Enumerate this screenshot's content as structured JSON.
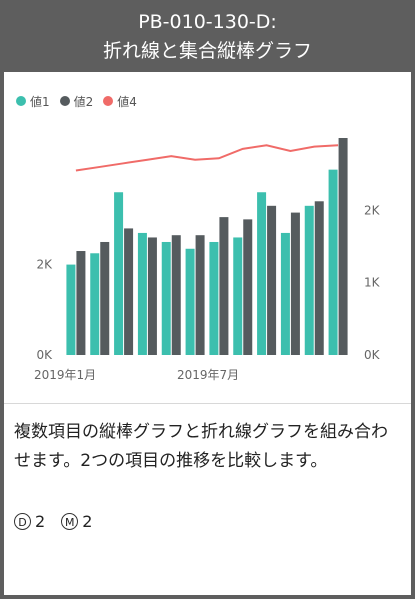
{
  "header": {
    "id": "PB-010-130-D:",
    "title": "折れ線と集合縦棒グラフ"
  },
  "legend": [
    {
      "label": "値1",
      "color": "#3cbfae"
    },
    {
      "label": "値2",
      "color": "#555b5e"
    },
    {
      "label": "値4",
      "color": "#f06b68"
    }
  ],
  "description": {
    "text": "複数項目の縦棒グラフと折れ線グラフを組み合わせます。2つの項目の推移を比較します。",
    "d_label": "D",
    "d_value": "2",
    "m_label": "M",
    "m_value": "2"
  },
  "chart_data": {
    "type": "bar",
    "categories": [
      "2019-01",
      "2019-02",
      "2019-03",
      "2019-04",
      "2019-05",
      "2019-06",
      "2019-07",
      "2019-08",
      "2019-09",
      "2019-10",
      "2019-11",
      "2019-12"
    ],
    "x_tick_labels": [
      {
        "index": 0,
        "label": "2019年1月"
      },
      {
        "index": 6,
        "label": "2019年7月"
      }
    ],
    "series": [
      {
        "name": "値1",
        "axis": "left",
        "type": "bar",
        "values": [
          2000,
          2250,
          3600,
          2700,
          2500,
          2350,
          2500,
          2600,
          3600,
          2700,
          3300,
          4100
        ]
      },
      {
        "name": "値2",
        "axis": "left",
        "type": "bar",
        "values": [
          2300,
          2500,
          2800,
          2600,
          2650,
          2650,
          3050,
          3000,
          3300,
          3150,
          3400,
          4800
        ]
      },
      {
        "name": "値4",
        "axis": "right",
        "type": "line",
        "values": [
          2.55,
          2.6,
          2.65,
          2.7,
          2.75,
          2.7,
          2.72,
          2.85,
          2.9,
          2.82,
          2.88,
          2.9
        ]
      }
    ],
    "left_axis": {
      "ylim": [
        0,
        4800
      ],
      "ticks": [
        0,
        2000
      ],
      "tick_labels": [
        "0K",
        "2K"
      ]
    },
    "right_axis": {
      "ylim": [
        0,
        3.0
      ],
      "ticks": [
        0,
        1,
        2
      ],
      "tick_labels": [
        "0K",
        "1K",
        "2K"
      ]
    },
    "legend_position": "top-left",
    "grid": false
  }
}
